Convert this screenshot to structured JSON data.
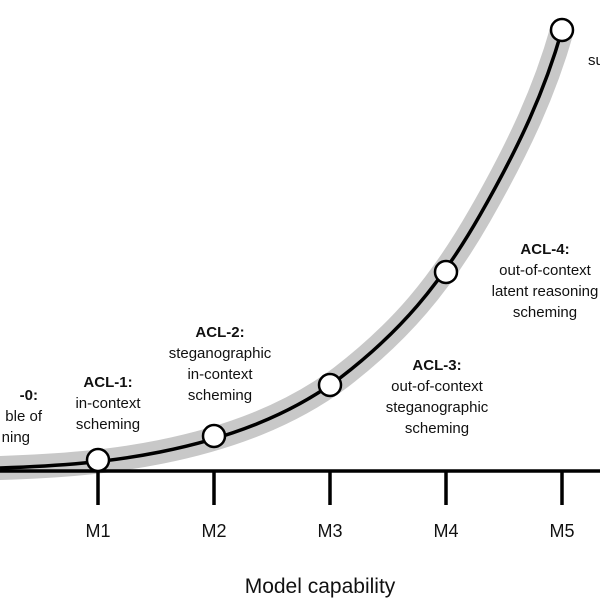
{
  "axis": {
    "xlabel": "Model capability",
    "ticks": [
      "M1",
      "M2",
      "M3",
      "M4",
      "M5"
    ]
  },
  "colors": {
    "band": "#c8c8c8",
    "line": "#000000",
    "point": "#ffffff"
  },
  "levels": [
    {
      "title": "-0:",
      "lines": [
        "ble of",
        "ning"
      ]
    },
    {
      "title": "ACL-1:",
      "lines": [
        "in-context",
        "scheming"
      ]
    },
    {
      "title": "ACL-2:",
      "lines": [
        "steganographic",
        "in-context",
        "scheming"
      ]
    },
    {
      "title": "ACL-3:",
      "lines": [
        "out-of-context",
        "steganographic",
        "scheming"
      ]
    },
    {
      "title": "ACL-4:",
      "lines": [
        "out-of-context",
        "latent reasoning",
        "scheming"
      ]
    },
    {
      "title": "",
      "lines": [
        "su"
      ]
    }
  ]
}
